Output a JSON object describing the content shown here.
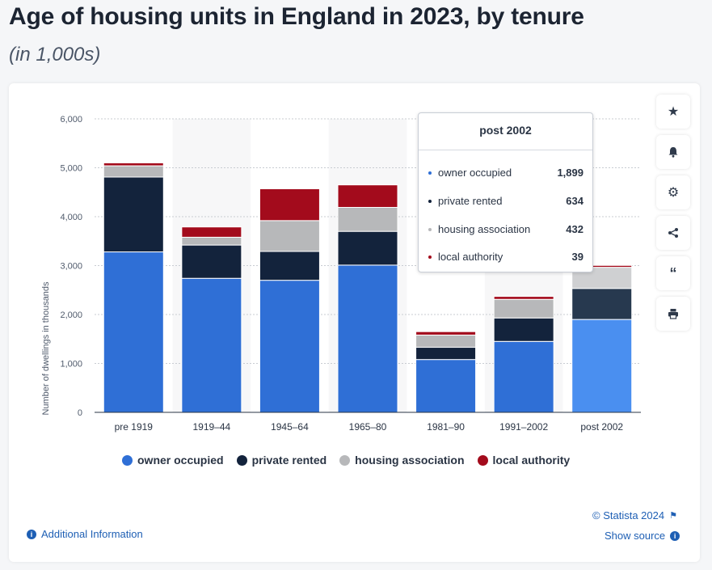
{
  "title": "Age of housing units in England in 2023, by tenure",
  "subtitle": "(in 1,000s)",
  "chart_data": {
    "type": "bar",
    "stacked": true,
    "categories": [
      "pre 1919",
      "1919–44",
      "1945–64",
      "1965–80",
      "1981–90",
      "1991–2002",
      "post 2002"
    ],
    "series": [
      {
        "name": "owner occupied",
        "color": "#2f6fd6",
        "values": [
          3280,
          2740,
          2700,
          3010,
          1080,
          1450,
          1899
        ]
      },
      {
        "name": "private rented",
        "color": "#13233c",
        "values": [
          1530,
          680,
          590,
          690,
          250,
          480,
          634
        ]
      },
      {
        "name": "housing association",
        "color": "#b7b8ba",
        "values": [
          230,
          160,
          630,
          490,
          250,
          380,
          432
        ]
      },
      {
        "name": "local authority",
        "color": "#a30b1c",
        "values": [
          60,
          210,
          650,
          460,
          70,
          60,
          39
        ]
      }
    ],
    "ylabel": "Number of dwellings in thousands",
    "yticks": [
      "0",
      "1,000",
      "2,000",
      "3,000",
      "4,000",
      "5,000",
      "6,000"
    ],
    "ylim": [
      0,
      6000
    ],
    "legend_position": "bottom",
    "grid": true
  },
  "tooltip": {
    "title": "post 2002",
    "rows": [
      {
        "label": "owner occupied",
        "value": "1,899",
        "color": "#2f6fd6"
      },
      {
        "label": "private rented",
        "value": "634",
        "color": "#13233c"
      },
      {
        "label": "housing association",
        "value": "432",
        "color": "#b7b8ba"
      },
      {
        "label": "local authority",
        "value": "39",
        "color": "#a30b1c"
      }
    ]
  },
  "sidebar": {
    "icons": [
      "star-icon",
      "bell-icon",
      "gear-icon",
      "share-icon",
      "quote-icon",
      "print-icon"
    ]
  },
  "footer": {
    "copyright": "© Statista 2024",
    "additional_info": "Additional Information",
    "show_source": "Show source"
  }
}
